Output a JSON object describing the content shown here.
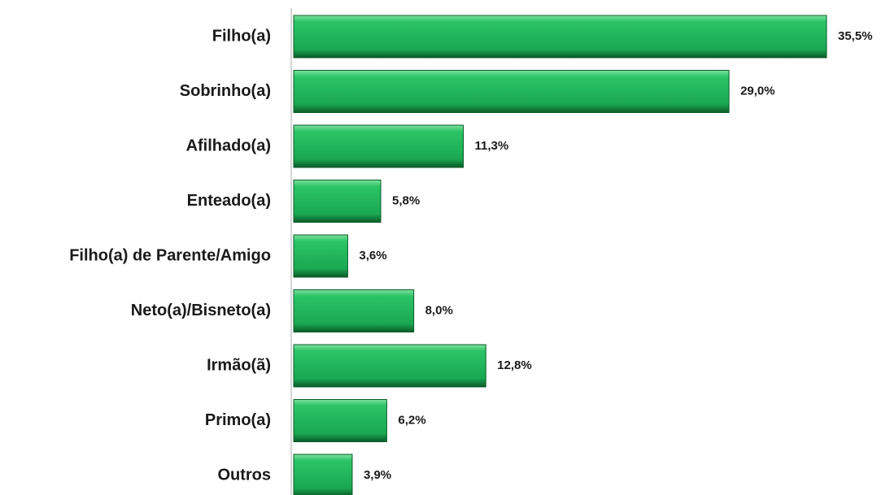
{
  "chart_data": {
    "type": "bar",
    "orientation": "horizontal",
    "categories": [
      "Filho(a)",
      "Sobrinho(a)",
      "Afilhado(a)",
      "Enteado(a)",
      "Filho(a) de Parente/Amigo",
      "Neto(a)/Bisneto(a)",
      "Irmão(ã)",
      "Primo(a)",
      "Outros"
    ],
    "values": [
      35.5,
      29.0,
      11.3,
      5.8,
      3.6,
      8.0,
      12.8,
      6.2,
      3.9
    ],
    "value_labels": [
      "35,5%",
      "29,0%",
      "11,3%",
      "5,8%",
      "3,6%",
      "8,0%",
      "12,8%",
      "6,2%",
      "3,9%"
    ],
    "color": "#1fb25a"
  }
}
